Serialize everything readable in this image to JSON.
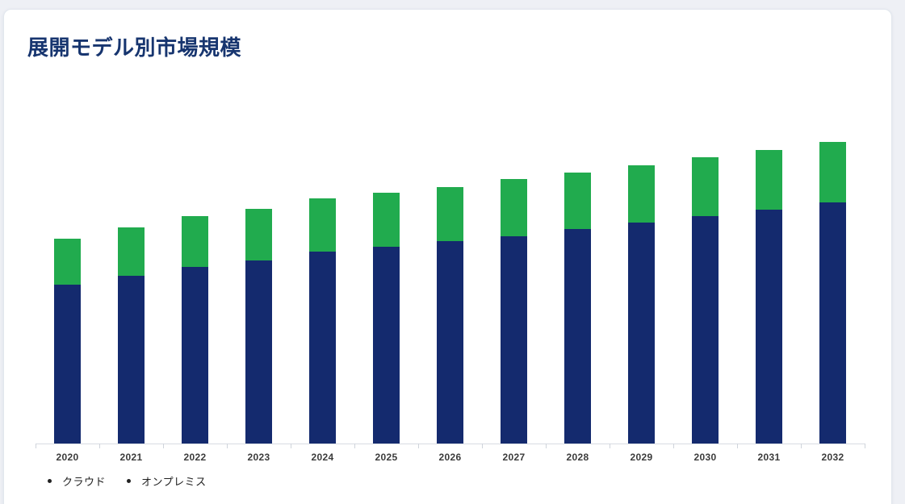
{
  "theme": {
    "page_background": "#eef0f5",
    "card_background": "#ffffff",
    "title_color": "#17356f",
    "axis_color": "#d8dce2",
    "x_label_color": "#3b3b3b",
    "legend_text_color": "#212121",
    "legend_marker_color": "#222222"
  },
  "card": {
    "title": "展開モデル別市場規模"
  },
  "legend": {
    "items": [
      {
        "label": "クラウド"
      },
      {
        "label": "オンプレミス"
      }
    ]
  },
  "chart_data": {
    "type": "bar",
    "stacked": true,
    "title": "展開モデル別市場規模",
    "xlabel": "",
    "ylabel": "",
    "categories": [
      "2020",
      "2021",
      "2022",
      "2023",
      "2024",
      "2025",
      "2026",
      "2027",
      "2028",
      "2029",
      "2030",
      "2031",
      "2032"
    ],
    "series": [
      {
        "name": "クラウド",
        "color": "#142a6e",
        "values": [
          197,
          208,
          219,
          227,
          238,
          244,
          251,
          257,
          266,
          274,
          282,
          290,
          299
        ]
      },
      {
        "name": "オンプレミス",
        "color": "#21ab4e",
        "values": [
          57,
          60,
          63,
          64,
          66,
          67,
          67,
          71,
          70,
          71,
          73,
          74,
          75
        ]
      }
    ],
    "value_scale_note": "no value axis shown in chart; values are pixel-proportional estimates",
    "ylim": [
      0,
      400
    ],
    "grid": false,
    "y_axis_visible": false,
    "legend_position": "bottom-left"
  }
}
